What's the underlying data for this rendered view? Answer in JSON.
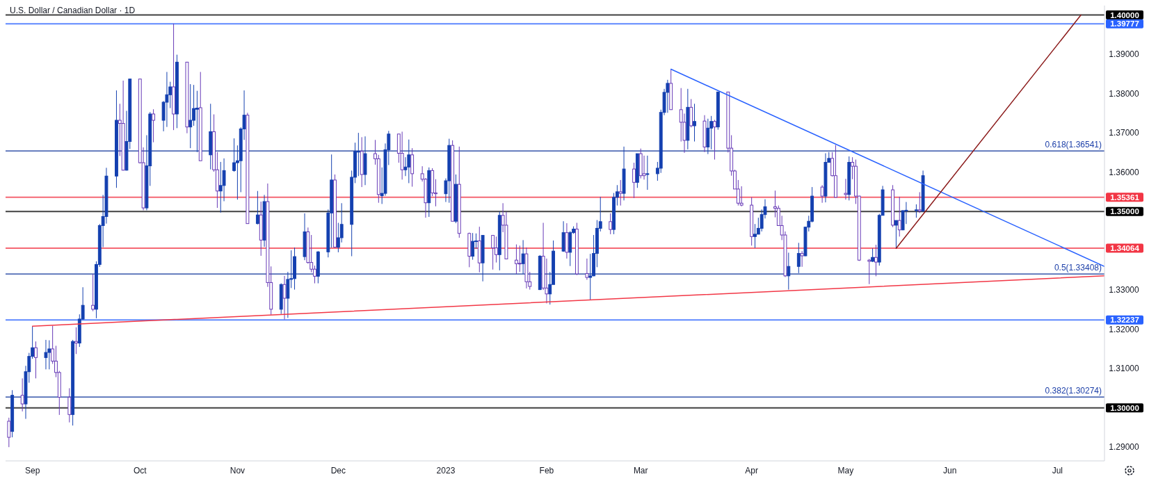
{
  "chart_data": {
    "type": "candlestick",
    "title": "U.S. Dollar / Canadian Dollar · 1D",
    "xlim": [
      "2022-08-24",
      "2023-07-17"
    ],
    "xticks": [
      {
        "value": "2022-09-01",
        "label": "Sep"
      },
      {
        "value": "2022-10-03",
        "label": "Oct"
      },
      {
        "value": "2022-11-01",
        "label": "Nov"
      },
      {
        "value": "2022-12-01",
        "label": "Dec"
      },
      {
        "value": "2023-01-02",
        "label": "2023"
      },
      {
        "value": "2023-02-01",
        "label": "Feb"
      },
      {
        "value": "2023-03-01",
        "label": "Mar"
      },
      {
        "value": "2023-04-03",
        "label": "Apr"
      },
      {
        "value": "2023-05-01",
        "label": "May"
      },
      {
        "value": "2023-06-01",
        "label": "Jun"
      },
      {
        "value": "2023-07-03",
        "label": "Jul"
      }
    ],
    "ylim": [
      1.2865,
      1.4024
    ],
    "yticks": [
      {
        "value": 1.29,
        "label": "1.29000"
      },
      {
        "value": 1.31,
        "label": "1.31000"
      },
      {
        "value": 1.32,
        "label": "1.32000"
      },
      {
        "value": 1.33,
        "label": "1.33000"
      },
      {
        "value": 1.36,
        "label": "1.36000"
      },
      {
        "value": 1.37,
        "label": "1.37000"
      },
      {
        "value": 1.38,
        "label": "1.38000"
      },
      {
        "value": 1.39,
        "label": "1.39000"
      }
    ],
    "series": [
      {
        "color": "#1440b0",
        "x": [
          "2022-08-26",
          "2022-08-30",
          "2022-08-31",
          "2022-09-01",
          "2022-09-05",
          "2022-09-06",
          "2022-09-13",
          "2022-09-15",
          "2022-09-16",
          "2022-09-20",
          "2022-09-21",
          "2022-09-22",
          "2022-09-23",
          "2022-09-26",
          "2022-09-29",
          "2022-09-30",
          "2022-10-05",
          "2022-10-06",
          "2022-10-10",
          "2022-10-11",
          "2022-10-12",
          "2022-10-14",
          "2022-10-18",
          "2022-10-19",
          "2022-10-20",
          "2022-10-24",
          "2022-10-27",
          "2022-10-28",
          "2022-10-31",
          "2022-11-01",
          "2022-11-02",
          "2022-11-03",
          "2022-11-07",
          "2022-11-09",
          "2022-11-14",
          "2022-11-16",
          "2022-11-17",
          "2022-11-18",
          "2022-11-21",
          "2022-11-25",
          "2022-11-28",
          "2022-11-29",
          "2022-12-01",
          "2022-12-02",
          "2022-12-05",
          "2022-12-06",
          "2022-12-07",
          "2022-12-09",
          "2022-12-14",
          "2022-12-15",
          "2022-12-16",
          "2022-12-21",
          "2022-12-22",
          "2022-12-28",
          "2023-01-02",
          "2023-01-03",
          "2023-01-05",
          "2023-01-10",
          "2023-01-11",
          "2023-01-13",
          "2023-01-18",
          "2023-01-25",
          "2023-01-30",
          "2023-02-02",
          "2023-02-03",
          "2023-02-06",
          "2023-02-08",
          "2023-02-09",
          "2023-02-14",
          "2023-02-15",
          "2023-02-16",
          "2023-02-17",
          "2023-02-21",
          "2023-02-22",
          "2023-02-24",
          "2023-02-28",
          "2023-03-03",
          "2023-03-06",
          "2023-03-07",
          "2023-03-08",
          "2023-03-09",
          "2023-03-15",
          "2023-03-17",
          "2023-03-21",
          "2023-03-22",
          "2023-03-24",
          "2023-04-04",
          "2023-04-05",
          "2023-04-06",
          "2023-04-07",
          "2023-04-14",
          "2023-04-17",
          "2023-04-19",
          "2023-04-20",
          "2023-04-21",
          "2023-04-25",
          "2023-04-26",
          "2023-05-02",
          "2023-05-09",
          "2023-05-11",
          "2023-05-12",
          "2023-05-16",
          "2023-05-18",
          "2023-05-19",
          "2023-05-22",
          "2023-05-24"
        ],
        "ohlc": [
          [
            1.294,
            1.3045,
            1.2925,
            1.3032
          ],
          [
            1.301,
            1.3107,
            1.2972,
            1.3092
          ],
          [
            1.3092,
            1.314,
            1.3064,
            1.3131
          ],
          [
            1.3131,
            1.3208,
            1.3125,
            1.3153
          ],
          [
            1.3128,
            1.3173,
            1.3098,
            1.3141
          ],
          [
            1.3141,
            1.3172,
            1.3098,
            1.315
          ],
          [
            1.2983,
            1.3173,
            1.2955,
            1.3169
          ],
          [
            1.3165,
            1.3238,
            1.3155,
            1.3226
          ],
          [
            1.3226,
            1.3307,
            1.3224,
            1.3261
          ],
          [
            1.3251,
            1.3373,
            1.3228,
            1.3365
          ],
          [
            1.3365,
            1.3468,
            1.3359,
            1.3464
          ],
          [
            1.3464,
            1.3542,
            1.3409,
            1.3487
          ],
          [
            1.3487,
            1.3611,
            1.3469,
            1.359
          ],
          [
            1.359,
            1.3808,
            1.356,
            1.3732
          ],
          [
            1.3605,
            1.3756,
            1.3604,
            1.3678
          ],
          [
            1.3678,
            1.3837,
            1.3659,
            1.3837
          ],
          [
            1.3509,
            1.3694,
            1.3503,
            1.3616
          ],
          [
            1.3616,
            1.3753,
            1.3565,
            1.3748
          ],
          [
            1.3732,
            1.3781,
            1.3704,
            1.3778
          ],
          [
            1.3778,
            1.3855,
            1.3715,
            1.3797
          ],
          [
            1.3797,
            1.383,
            1.3763,
            1.3817
          ],
          [
            1.3748,
            1.3899,
            1.3712,
            1.388
          ],
          [
            1.3715,
            1.3824,
            1.3661,
            1.3732
          ],
          [
            1.3732,
            1.3822,
            1.3718,
            1.3762
          ],
          [
            1.376,
            1.3807,
            1.3651,
            1.3763
          ],
          [
            1.3644,
            1.3774,
            1.3607,
            1.3703
          ],
          [
            1.3552,
            1.3626,
            1.3497,
            1.3566
          ],
          [
            1.3566,
            1.3635,
            1.3526,
            1.3604
          ],
          [
            1.3604,
            1.3686,
            1.3601,
            1.3624
          ],
          [
            1.3624,
            1.3668,
            1.353,
            1.3629
          ],
          [
            1.3629,
            1.3714,
            1.3549,
            1.371
          ],
          [
            1.371,
            1.3808,
            1.3682,
            1.3745
          ],
          [
            1.3469,
            1.3552,
            1.3467,
            1.3491
          ],
          [
            1.3427,
            1.3542,
            1.341,
            1.3525
          ],
          [
            1.3251,
            1.3317,
            1.3239,
            1.3314
          ],
          [
            1.3279,
            1.3346,
            1.3229,
            1.3327
          ],
          [
            1.3327,
            1.3401,
            1.3305,
            1.3329
          ],
          [
            1.3329,
            1.3408,
            1.3301,
            1.3385
          ],
          [
            1.3385,
            1.3495,
            1.3376,
            1.3448
          ],
          [
            1.3335,
            1.3399,
            1.3317,
            1.3397
          ],
          [
            1.3397,
            1.3505,
            1.3383,
            1.3496
          ],
          [
            1.3496,
            1.3645,
            1.3408,
            1.358
          ],
          [
            1.3409,
            1.3471,
            1.3396,
            1.3433
          ],
          [
            1.3433,
            1.3521,
            1.3421,
            1.3467
          ],
          [
            1.3467,
            1.3604,
            1.3386,
            1.3587
          ],
          [
            1.3587,
            1.3675,
            1.3572,
            1.3653
          ],
          [
            1.3651,
            1.37,
            1.359,
            1.3653
          ],
          [
            1.3594,
            1.3691,
            1.3567,
            1.3647
          ],
          [
            1.354,
            1.3612,
            1.3519,
            1.3546
          ],
          [
            1.3546,
            1.3673,
            1.354,
            1.3657
          ],
          [
            1.3657,
            1.3705,
            1.3618,
            1.3697
          ],
          [
            1.3606,
            1.3638,
            1.359,
            1.3613
          ],
          [
            1.3613,
            1.3683,
            1.3572,
            1.3644
          ],
          [
            1.3522,
            1.3612,
            1.3486,
            1.3604
          ],
          [
            1.3545,
            1.3584,
            1.3524,
            1.3578
          ],
          [
            1.3578,
            1.3685,
            1.3522,
            1.3668
          ],
          [
            1.3475,
            1.3594,
            1.347,
            1.3569
          ],
          [
            1.3386,
            1.3445,
            1.3377,
            1.3424
          ],
          [
            1.3424,
            1.3444,
            1.3405,
            1.3425
          ],
          [
            1.3369,
            1.3439,
            1.3322,
            1.3439
          ],
          [
            1.339,
            1.3499,
            1.335,
            1.349
          ],
          [
            1.3367,
            1.3427,
            1.3341,
            1.3392
          ],
          [
            1.3301,
            1.3389,
            1.33,
            1.3386
          ],
          [
            1.329,
            1.3346,
            1.3263,
            1.3314
          ],
          [
            1.3314,
            1.3426,
            1.3314,
            1.3399
          ],
          [
            1.3399,
            1.3475,
            1.3397,
            1.3446
          ],
          [
            1.3396,
            1.345,
            1.3361,
            1.3446
          ],
          [
            1.3446,
            1.3462,
            1.3443,
            1.3455
          ],
          [
            1.3332,
            1.3392,
            1.3274,
            1.3336
          ],
          [
            1.3336,
            1.344,
            1.3335,
            1.3393
          ],
          [
            1.3393,
            1.3478,
            1.3358,
            1.3457
          ],
          [
            1.3457,
            1.3537,
            1.3449,
            1.3474
          ],
          [
            1.3454,
            1.3547,
            1.3442,
            1.3536
          ],
          [
            1.3536,
            1.3567,
            1.3515,
            1.355
          ],
          [
            1.3546,
            1.3665,
            1.3528,
            1.3608
          ],
          [
            1.3574,
            1.3647,
            1.356,
            1.3647
          ],
          [
            1.3594,
            1.3642,
            1.3555,
            1.3596
          ],
          [
            1.3596,
            1.3626,
            1.3578,
            1.361
          ],
          [
            1.361,
            1.3759,
            1.3598,
            1.3752
          ],
          [
            1.3752,
            1.3812,
            1.3745,
            1.3803
          ],
          [
            1.3803,
            1.3835,
            1.3751,
            1.3826
          ],
          [
            1.3681,
            1.3812,
            1.3658,
            1.3765
          ],
          [
            1.3718,
            1.3774,
            1.3678,
            1.3729
          ],
          [
            1.3664,
            1.3736,
            1.3646,
            1.3712
          ],
          [
            1.3712,
            1.3743,
            1.3658,
            1.3729
          ],
          [
            1.3715,
            1.3804,
            1.3708,
            1.3804
          ],
          [
            1.3436,
            1.3468,
            1.3407,
            1.3442
          ],
          [
            1.3442,
            1.3484,
            1.3442,
            1.3457
          ],
          [
            1.3457,
            1.3505,
            1.3449,
            1.3492
          ],
          [
            1.3492,
            1.3531,
            1.3482,
            1.3512
          ],
          [
            1.3336,
            1.3395,
            1.3301,
            1.336
          ],
          [
            1.336,
            1.342,
            1.3343,
            1.3393
          ],
          [
            1.3387,
            1.3461,
            1.3386,
            1.346
          ],
          [
            1.346,
            1.3489,
            1.3449,
            1.3475
          ],
          [
            1.3475,
            1.3562,
            1.3472,
            1.3539
          ],
          [
            1.3539,
            1.3648,
            1.3523,
            1.3625
          ],
          [
            1.3625,
            1.3651,
            1.3625,
            1.3635
          ],
          [
            1.3543,
            1.364,
            1.3528,
            1.3625
          ],
          [
            1.3373,
            1.3406,
            1.3371,
            1.3383
          ],
          [
            1.3371,
            1.3494,
            1.3362,
            1.349
          ],
          [
            1.349,
            1.3565,
            1.349,
            1.3555
          ],
          [
            1.3465,
            1.3477,
            1.3406,
            1.3477
          ],
          [
            1.3453,
            1.3503,
            1.3452,
            1.3502
          ],
          [
            1.3502,
            1.3524,
            1.3468,
            1.3503
          ],
          [
            1.3503,
            1.3518,
            1.3484,
            1.3504
          ],
          [
            1.3501,
            1.3604,
            1.3499,
            1.3591
          ]
        ]
      },
      {
        "color": "#673ab7",
        "x": [
          "2022-08-25",
          "2022-08-29",
          "2022-09-02",
          "2022-09-07",
          "2022-09-08",
          "2022-09-09",
          "2022-09-12",
          "2022-09-14",
          "2022-09-19",
          "2022-09-27",
          "2022-09-28",
          "2022-10-03",
          "2022-10-04",
          "2022-10-07",
          "2022-10-13",
          "2022-10-17",
          "2022-10-21",
          "2022-10-25",
          "2022-10-26",
          "2022-11-04",
          "2022-11-08",
          "2022-11-10",
          "2022-11-11",
          "2022-11-15",
          "2022-11-22",
          "2022-11-23",
          "2022-11-24",
          "2022-11-30",
          "2022-12-08",
          "2022-12-12",
          "2022-12-13",
          "2022-12-19",
          "2022-12-20",
          "2022-12-23",
          "2022-12-26",
          "2022-12-27",
          "2022-12-29",
          "2022-12-30",
          "2023-01-04",
          "2023-01-06",
          "2023-01-09",
          "2023-01-12",
          "2023-01-16",
          "2023-01-17",
          "2023-01-19",
          "2023-01-20",
          "2023-01-23",
          "2023-01-24",
          "2023-01-26",
          "2023-01-27",
          "2023-01-31",
          "2023-02-01",
          "2023-02-07",
          "2023-02-10",
          "2023-02-13",
          "2023-02-20",
          "2023-02-23",
          "2023-02-27",
          "2023-03-01",
          "2023-03-02",
          "2023-03-10",
          "2023-03-13",
          "2023-03-14",
          "2023-03-16",
          "2023-03-20",
          "2023-03-23",
          "2023-03-27",
          "2023-03-28",
          "2023-03-29",
          "2023-03-30",
          "2023-03-31",
          "2023-04-03",
          "2023-04-10",
          "2023-04-11",
          "2023-04-12",
          "2023-04-13",
          "2023-04-18",
          "2023-04-24",
          "2023-04-27",
          "2023-04-28",
          "2023-05-01",
          "2023-05-03",
          "2023-05-04",
          "2023-05-05",
          "2023-05-08",
          "2023-05-10",
          "2023-05-15",
          "2023-05-17",
          "2023-05-23"
        ],
        "ohlc": [
          [
            1.2966,
            1.2975,
            1.29,
            1.2925
          ],
          [
            1.3032,
            1.3075,
            1.2991,
            1.301
          ],
          [
            1.3153,
            1.3169,
            1.3075,
            1.3128
          ],
          [
            1.315,
            1.3209,
            1.3112,
            1.3119
          ],
          [
            1.3119,
            1.3158,
            1.3078,
            1.309
          ],
          [
            1.309,
            1.3094,
            1.2982,
            1.3027
          ],
          [
            1.3027,
            1.305,
            1.2963,
            1.2983
          ],
          [
            1.3169,
            1.3205,
            1.3137,
            1.3165
          ],
          [
            1.3261,
            1.3341,
            1.3246,
            1.3251
          ],
          [
            1.3732,
            1.3774,
            1.3641,
            1.3724
          ],
          [
            1.3724,
            1.3833,
            1.3604,
            1.3605
          ],
          [
            1.3837,
            1.3837,
            1.3622,
            1.3624
          ],
          [
            1.3624,
            1.3663,
            1.3503,
            1.3509
          ],
          [
            1.3748,
            1.376,
            1.3676,
            1.3732
          ],
          [
            1.3817,
            1.3978,
            1.3707,
            1.3748
          ],
          [
            1.388,
            1.388,
            1.3699,
            1.3715
          ],
          [
            1.3764,
            1.3855,
            1.3629,
            1.3629
          ],
          [
            1.3703,
            1.3747,
            1.3601,
            1.3606
          ],
          [
            1.3606,
            1.3651,
            1.3509,
            1.3552
          ],
          [
            1.3745,
            1.3751,
            1.3469,
            1.3469
          ],
          [
            1.3491,
            1.3525,
            1.3387,
            1.3427
          ],
          [
            1.3525,
            1.3571,
            1.3308,
            1.3319
          ],
          [
            1.3319,
            1.336,
            1.3237,
            1.3251
          ],
          [
            1.3314,
            1.3336,
            1.3225,
            1.3279
          ],
          [
            1.3448,
            1.3459,
            1.3367,
            1.337
          ],
          [
            1.337,
            1.344,
            1.3345,
            1.3353
          ],
          [
            1.3353,
            1.3362,
            1.3317,
            1.3335
          ],
          [
            1.358,
            1.3594,
            1.3409,
            1.3409
          ],
          [
            1.3653,
            1.3689,
            1.3562,
            1.3594
          ],
          [
            1.3647,
            1.3682,
            1.3619,
            1.3634
          ],
          [
            1.3634,
            1.3644,
            1.3522,
            1.3543
          ],
          [
            1.3697,
            1.3697,
            1.3624,
            1.3648
          ],
          [
            1.3648,
            1.3703,
            1.3581,
            1.3606
          ],
          [
            1.3644,
            1.3661,
            1.3563,
            1.3596
          ],
          [
            1.3596,
            1.3615,
            1.3576,
            1.3582
          ],
          [
            1.3582,
            1.3585,
            1.3484,
            1.3522
          ],
          [
            1.3604,
            1.361,
            1.3539,
            1.3547
          ],
          [
            1.3547,
            1.3582,
            1.3513,
            1.3545
          ],
          [
            1.3668,
            1.3681,
            1.3475,
            1.3475
          ],
          [
            1.3569,
            1.3665,
            1.3433,
            1.3444
          ],
          [
            1.3444,
            1.3446,
            1.3358,
            1.3386
          ],
          [
            1.3425,
            1.3461,
            1.3345,
            1.3369
          ],
          [
            1.3439,
            1.3439,
            1.3352,
            1.3407
          ],
          [
            1.3407,
            1.3436,
            1.337,
            1.339
          ],
          [
            1.349,
            1.3521,
            1.3447,
            1.3465
          ],
          [
            1.3465,
            1.3499,
            1.3379,
            1.3379
          ],
          [
            1.3376,
            1.3416,
            1.3341,
            1.3367
          ],
          [
            1.3368,
            1.3413,
            1.3346,
            1.3367
          ],
          [
            1.3392,
            1.3408,
            1.3304,
            1.3321
          ],
          [
            1.3321,
            1.3346,
            1.3301,
            1.3309
          ],
          [
            1.3386,
            1.3471,
            1.33,
            1.3305
          ],
          [
            1.3305,
            1.338,
            1.3266,
            1.329
          ],
          [
            1.3446,
            1.347,
            1.338,
            1.3396
          ],
          [
            1.3455,
            1.3471,
            1.3338,
            1.3341
          ],
          [
            1.3342,
            1.338,
            1.3326,
            1.3332
          ],
          [
            1.3474,
            1.3495,
            1.3442,
            1.3454
          ],
          [
            1.355,
            1.358,
            1.3515,
            1.3546
          ],
          [
            1.3608,
            1.3624,
            1.3534,
            1.3574
          ],
          [
            1.3647,
            1.366,
            1.3584,
            1.3591
          ],
          [
            1.3596,
            1.3642,
            1.3581,
            1.3591
          ],
          [
            1.3826,
            1.3862,
            1.3759,
            1.3759
          ],
          [
            1.3759,
            1.3814,
            1.3678,
            1.3727
          ],
          [
            1.3727,
            1.3749,
            1.3649,
            1.3681
          ],
          [
            1.3765,
            1.3786,
            1.3714,
            1.3718
          ],
          [
            1.373,
            1.3745,
            1.3651,
            1.3664
          ],
          [
            1.3729,
            1.3733,
            1.3632,
            1.3715
          ],
          [
            1.3804,
            1.3804,
            1.365,
            1.3661
          ],
          [
            1.3661,
            1.3694,
            1.3591,
            1.3603
          ],
          [
            1.3603,
            1.3606,
            1.3557,
            1.3557
          ],
          [
            1.3557,
            1.358,
            1.3515,
            1.3521
          ],
          [
            1.3521,
            1.3564,
            1.3513,
            1.3516
          ],
          [
            1.3516,
            1.3536,
            1.3413,
            1.3436
          ],
          [
            1.3512,
            1.3553,
            1.3485,
            1.3508
          ],
          [
            1.3508,
            1.3515,
            1.3464,
            1.3464
          ],
          [
            1.3464,
            1.3489,
            1.3427,
            1.344
          ],
          [
            1.344,
            1.3449,
            1.3333,
            1.3336
          ],
          [
            1.3393,
            1.3399,
            1.3359,
            1.3387
          ],
          [
            1.3562,
            1.3567,
            1.3522,
            1.3539
          ],
          [
            1.3635,
            1.3651,
            1.3589,
            1.3591
          ],
          [
            1.3591,
            1.3669,
            1.3536,
            1.3536
          ],
          [
            1.3546,
            1.3583,
            1.353,
            1.3543
          ],
          [
            1.3625,
            1.3638,
            1.3582,
            1.3615
          ],
          [
            1.3615,
            1.3632,
            1.3519,
            1.3539
          ],
          [
            1.3539,
            1.354,
            1.3374,
            1.3376
          ],
          [
            1.3376,
            1.3379,
            1.3315,
            1.3373
          ],
          [
            1.3383,
            1.3415,
            1.3335,
            1.3371
          ],
          [
            1.3555,
            1.3567,
            1.346,
            1.3465
          ],
          [
            1.3477,
            1.3537,
            1.3436,
            1.3453
          ],
          [
            1.3504,
            1.3549,
            1.3496,
            1.3501
          ]
        ]
      },
      {
        "type": "line",
        "color": "#2962ff",
        "x": [
          "2023-03-10",
          "2023-07-17"
        ],
        "values": [
          1.3862,
          1.336
        ]
      },
      {
        "type": "line",
        "color": "#f23645",
        "x": [
          "2022-09-01",
          "2023-07-17"
        ],
        "values": [
          1.3208,
          1.3336
        ]
      },
      {
        "type": "line",
        "color": "#8b1a1a",
        "x": [
          "2023-05-16",
          "2023-07-10"
        ],
        "values": [
          1.3406,
          1.4
        ]
      }
    ],
    "ref_lines": [
      {
        "axis": "y",
        "value": 1.4,
        "label": "1.40000",
        "color": "#000000"
      },
      {
        "axis": "y",
        "value": 1.39777,
        "label": "1.39777",
        "color": "#2962ff"
      },
      {
        "axis": "y",
        "value": 1.36541,
        "color": "#0c3299"
      },
      {
        "axis": "y",
        "value": 1.35361,
        "label": "1.35361",
        "color": "#f23645"
      },
      {
        "axis": "y",
        "value": 1.35,
        "label": "1.35000",
        "color": "#000000"
      },
      {
        "axis": "y",
        "value": 1.34064,
        "label": "1.34064",
        "color": "#f23645"
      },
      {
        "axis": "y",
        "value": 1.33408,
        "color": "#0c3299"
      },
      {
        "axis": "y",
        "value": 1.32237,
        "label": "1.32237",
        "color": "#2962ff"
      },
      {
        "axis": "y",
        "value": 1.30274,
        "color": "#0c3299"
      },
      {
        "axis": "y",
        "value": 1.3,
        "label": "1.30000",
        "color": "#000000"
      }
    ],
    "annotations": [
      {
        "text": "0.618(1.36541)",
        "x": "2023-07-17",
        "y": 1.36541
      },
      {
        "text": "0.5(1.33408)",
        "x": "2023-07-17",
        "y": 1.33408
      },
      {
        "text": "0.382(1.30274)",
        "x": "2023-07-17",
        "y": 1.30274
      }
    ]
  }
}
